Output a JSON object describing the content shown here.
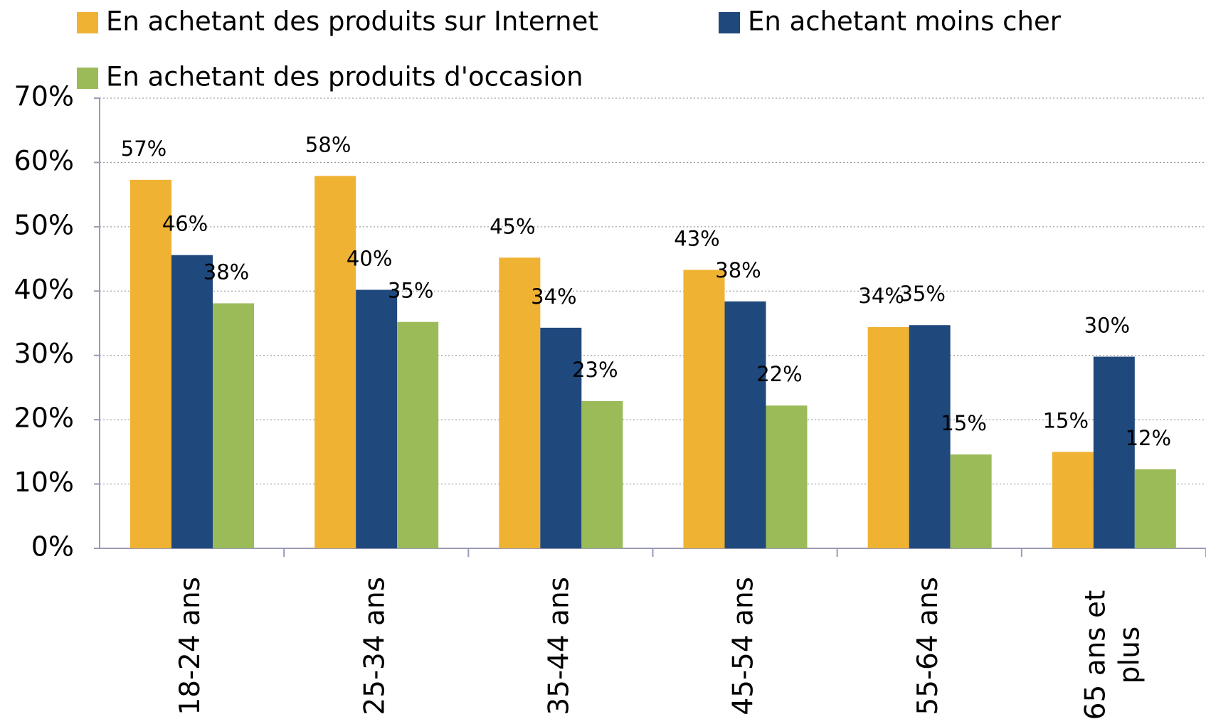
{
  "chart_data": {
    "type": "bar",
    "categories": [
      "18-24 ans",
      "25-34 ans",
      "35-44 ans",
      "45-54 ans",
      "55-64 ans",
      "65 ans et plus"
    ],
    "series": [
      {
        "name": "En achetant des produits sur Internet",
        "color": "#f0b232",
        "values": [
          57.3,
          57.9,
          45.2,
          43.3,
          34.4,
          15.0
        ],
        "value_labels": [
          "57%",
          "58%",
          "45%",
          "43%",
          "34%",
          "15%"
        ]
      },
      {
        "name": "En achetant moins cher",
        "color": "#1f497d",
        "values": [
          45.6,
          40.2,
          34.3,
          38.4,
          34.7,
          29.8
        ],
        "value_labels": [
          "46%",
          "40%",
          "34%",
          "38%",
          "35%",
          "30%"
        ]
      },
      {
        "name": "En achetant des produits d'occasion",
        "color": "#9bbb59",
        "values": [
          38.1,
          35.2,
          22.9,
          22.2,
          14.6,
          12.3
        ],
        "value_labels": [
          "38%",
          "35%",
          "23%",
          "22%",
          "15%",
          "12%"
        ]
      }
    ],
    "ylim": [
      0,
      70
    ],
    "yticks": [
      {
        "value": 0,
        "label": "0%"
      },
      {
        "value": 10,
        "label": "10%"
      },
      {
        "value": 20,
        "label": "20%"
      },
      {
        "value": 30,
        "label": "30%"
      },
      {
        "value": 40,
        "label": "40%"
      },
      {
        "value": 50,
        "label": "50%"
      },
      {
        "value": 60,
        "label": "60%"
      },
      {
        "value": 70,
        "label": "70%"
      }
    ],
    "grid": true
  }
}
